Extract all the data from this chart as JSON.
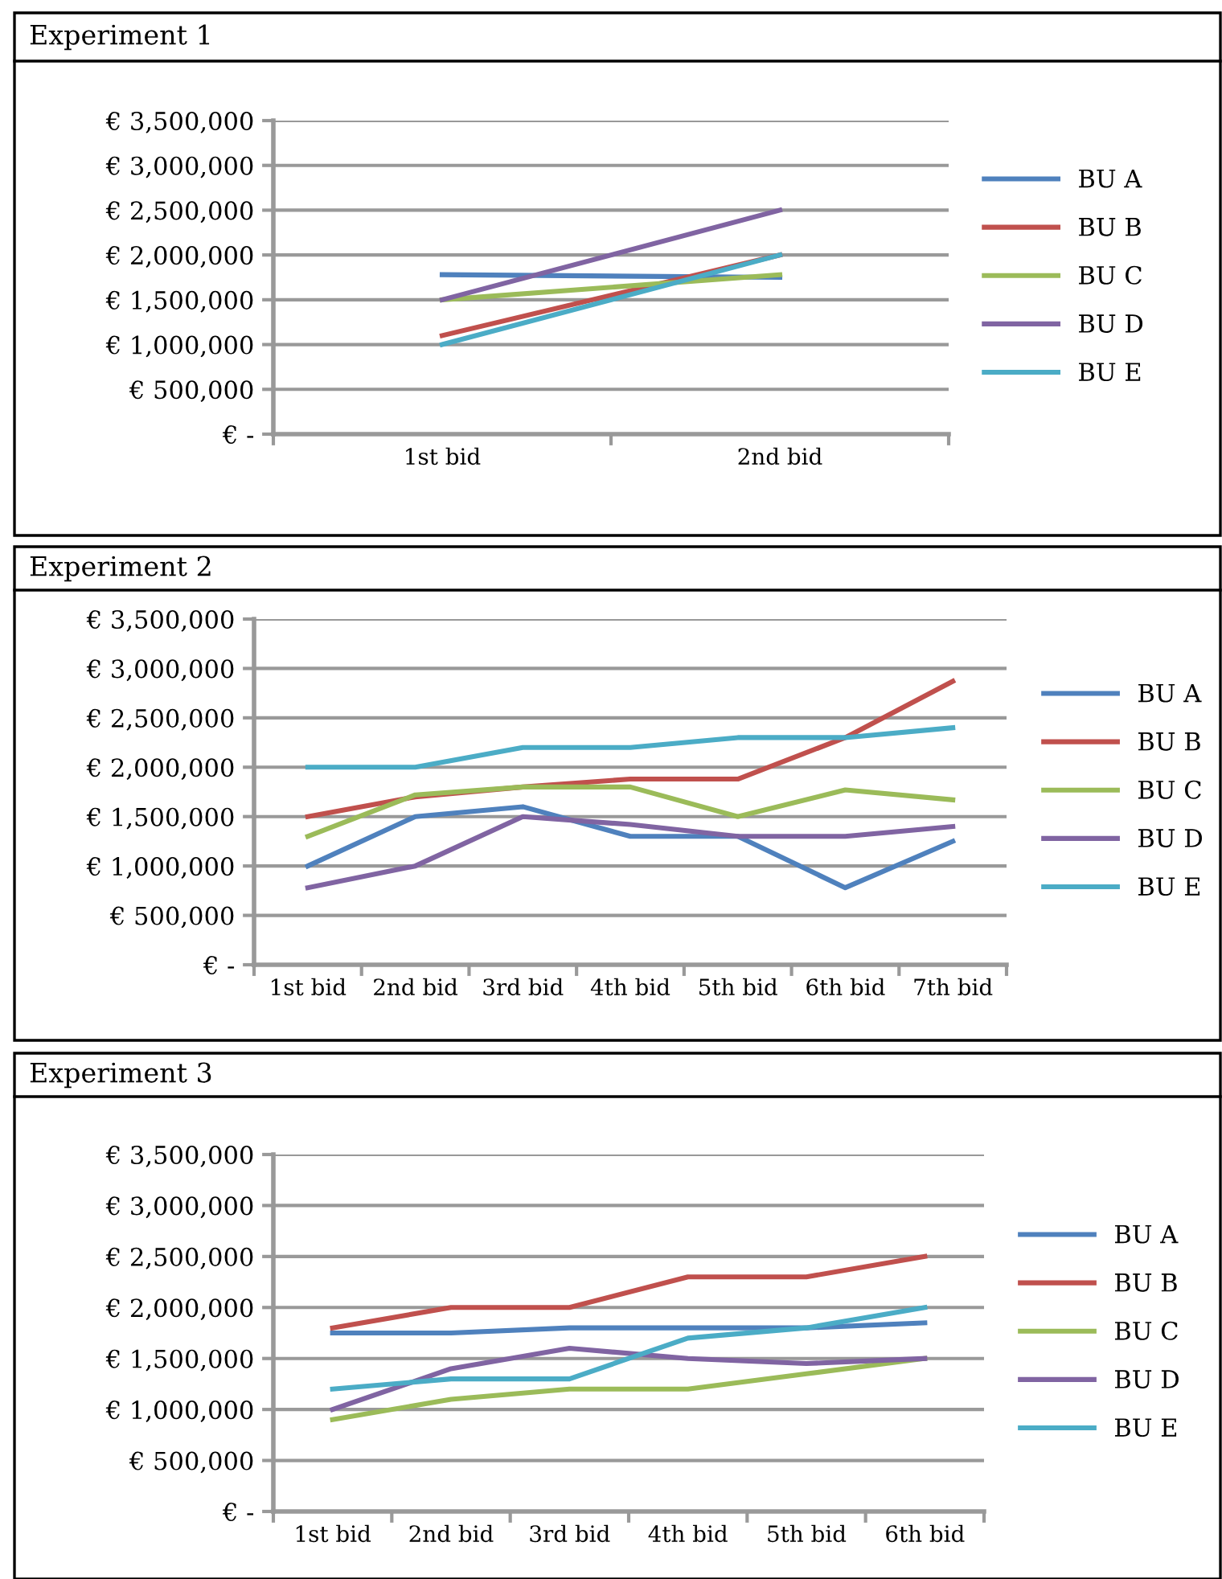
{
  "chart_data": [
    {
      "type": "line",
      "title": "Experiment 1",
      "categories": [
        "1st bid",
        "2nd bid"
      ],
      "series": [
        {
          "name": "BU A",
          "color": "#4f81bd",
          "values": [
            1780000,
            1750000
          ]
        },
        {
          "name": "BU B",
          "color": "#c0504d",
          "values": [
            1100000,
            2000000
          ]
        },
        {
          "name": "BU C",
          "color": "#9bbb59",
          "values": [
            1500000,
            1780000
          ]
        },
        {
          "name": "BU D",
          "color": "#8064a2",
          "values": [
            1500000,
            2500000
          ]
        },
        {
          "name": "BU E",
          "color": "#4bacc6",
          "values": [
            1000000,
            2000000
          ]
        }
      ],
      "ylim": [
        0,
        3500000
      ],
      "yticks": [
        {
          "value": 0,
          "label": "€ -"
        },
        {
          "value": 500000,
          "label": "€ 500,000"
        },
        {
          "value": 1000000,
          "label": "€ 1,000,000"
        },
        {
          "value": 1500000,
          "label": "€ 1,500,000"
        },
        {
          "value": 2000000,
          "label": "€ 2,000,000"
        },
        {
          "value": 2500000,
          "label": "€ 2,500,000"
        },
        {
          "value": 3000000,
          "label": "€ 3,000,000"
        },
        {
          "value": 3500000,
          "label": "€ 3,500,000"
        }
      ],
      "grid": "y",
      "legend": "right",
      "marker": "none",
      "line_style": "solid"
    },
    {
      "type": "line",
      "title": "Experiment 2",
      "categories": [
        "1st bid",
        "2nd bid",
        "3rd bid",
        "4th bid",
        "5th bid",
        "6th bid",
        "7th bid"
      ],
      "series": [
        {
          "name": "BU A",
          "color": "#4f81bd",
          "values": [
            1000000,
            1500000,
            1600000,
            1300000,
            1300000,
            780000,
            1250000
          ]
        },
        {
          "name": "BU B",
          "color": "#c0504d",
          "values": [
            1500000,
            1700000,
            1800000,
            1880000,
            1880000,
            2300000,
            2870000
          ]
        },
        {
          "name": "BU C",
          "color": "#9bbb59",
          "values": [
            1300000,
            1720000,
            1800000,
            1800000,
            1500000,
            1770000,
            1670000
          ]
        },
        {
          "name": "BU D",
          "color": "#8064a2",
          "values": [
            780000,
            1000000,
            1500000,
            1420000,
            1300000,
            1300000,
            1400000
          ]
        },
        {
          "name": "BU E",
          "color": "#4bacc6",
          "values": [
            2000000,
            2000000,
            2200000,
            2200000,
            2300000,
            2300000,
            2400000
          ]
        }
      ],
      "ylim": [
        0,
        3500000
      ],
      "yticks": [
        {
          "value": 0,
          "label": "€ -"
        },
        {
          "value": 500000,
          "label": "€ 500,000"
        },
        {
          "value": 1000000,
          "label": "€ 1,000,000"
        },
        {
          "value": 1500000,
          "label": "€ 1,500,000"
        },
        {
          "value": 2000000,
          "label": "€ 2,000,000"
        },
        {
          "value": 2500000,
          "label": "€ 2,500,000"
        },
        {
          "value": 3000000,
          "label": "€ 3,000,000"
        },
        {
          "value": 3500000,
          "label": "€ 3,500,000"
        }
      ],
      "grid": "y",
      "legend": "right",
      "marker": "none",
      "line_style": "solid"
    },
    {
      "type": "line",
      "title": "Experiment 3",
      "categories": [
        "1st bid",
        "2nd bid",
        "3rd bid",
        "4th bid",
        "5th bid",
        "6th bid"
      ],
      "series": [
        {
          "name": "BU A",
          "color": "#4f81bd",
          "values": [
            1750000,
            1750000,
            1800000,
            1800000,
            1800000,
            1850000
          ]
        },
        {
          "name": "BU B",
          "color": "#c0504d",
          "values": [
            1800000,
            2000000,
            2000000,
            2300000,
            2300000,
            2500000
          ]
        },
        {
          "name": "BU C",
          "color": "#9bbb59",
          "values": [
            900000,
            1100000,
            1200000,
            1200000,
            1350000,
            1500000
          ]
        },
        {
          "name": "BU D",
          "color": "#8064a2",
          "values": [
            1000000,
            1400000,
            1600000,
            1500000,
            1450000,
            1500000
          ]
        },
        {
          "name": "BU E",
          "color": "#4bacc6",
          "values": [
            1200000,
            1300000,
            1300000,
            1700000,
            1800000,
            2000000
          ]
        }
      ],
      "ylim": [
        0,
        3500000
      ],
      "yticks": [
        {
          "value": 0,
          "label": "€ -"
        },
        {
          "value": 500000,
          "label": "€ 500,000"
        },
        {
          "value": 1000000,
          "label": "€ 1,000,000"
        },
        {
          "value": 1500000,
          "label": "€ 1,500,000"
        },
        {
          "value": 2000000,
          "label": "€ 2,000,000"
        },
        {
          "value": 2500000,
          "label": "€ 2,500,000"
        },
        {
          "value": 3000000,
          "label": "€ 3,000,000"
        },
        {
          "value": 3500000,
          "label": "€ 3,500,000"
        }
      ],
      "grid": "y",
      "legend": "right",
      "marker": "none",
      "line_style": "solid"
    }
  ]
}
